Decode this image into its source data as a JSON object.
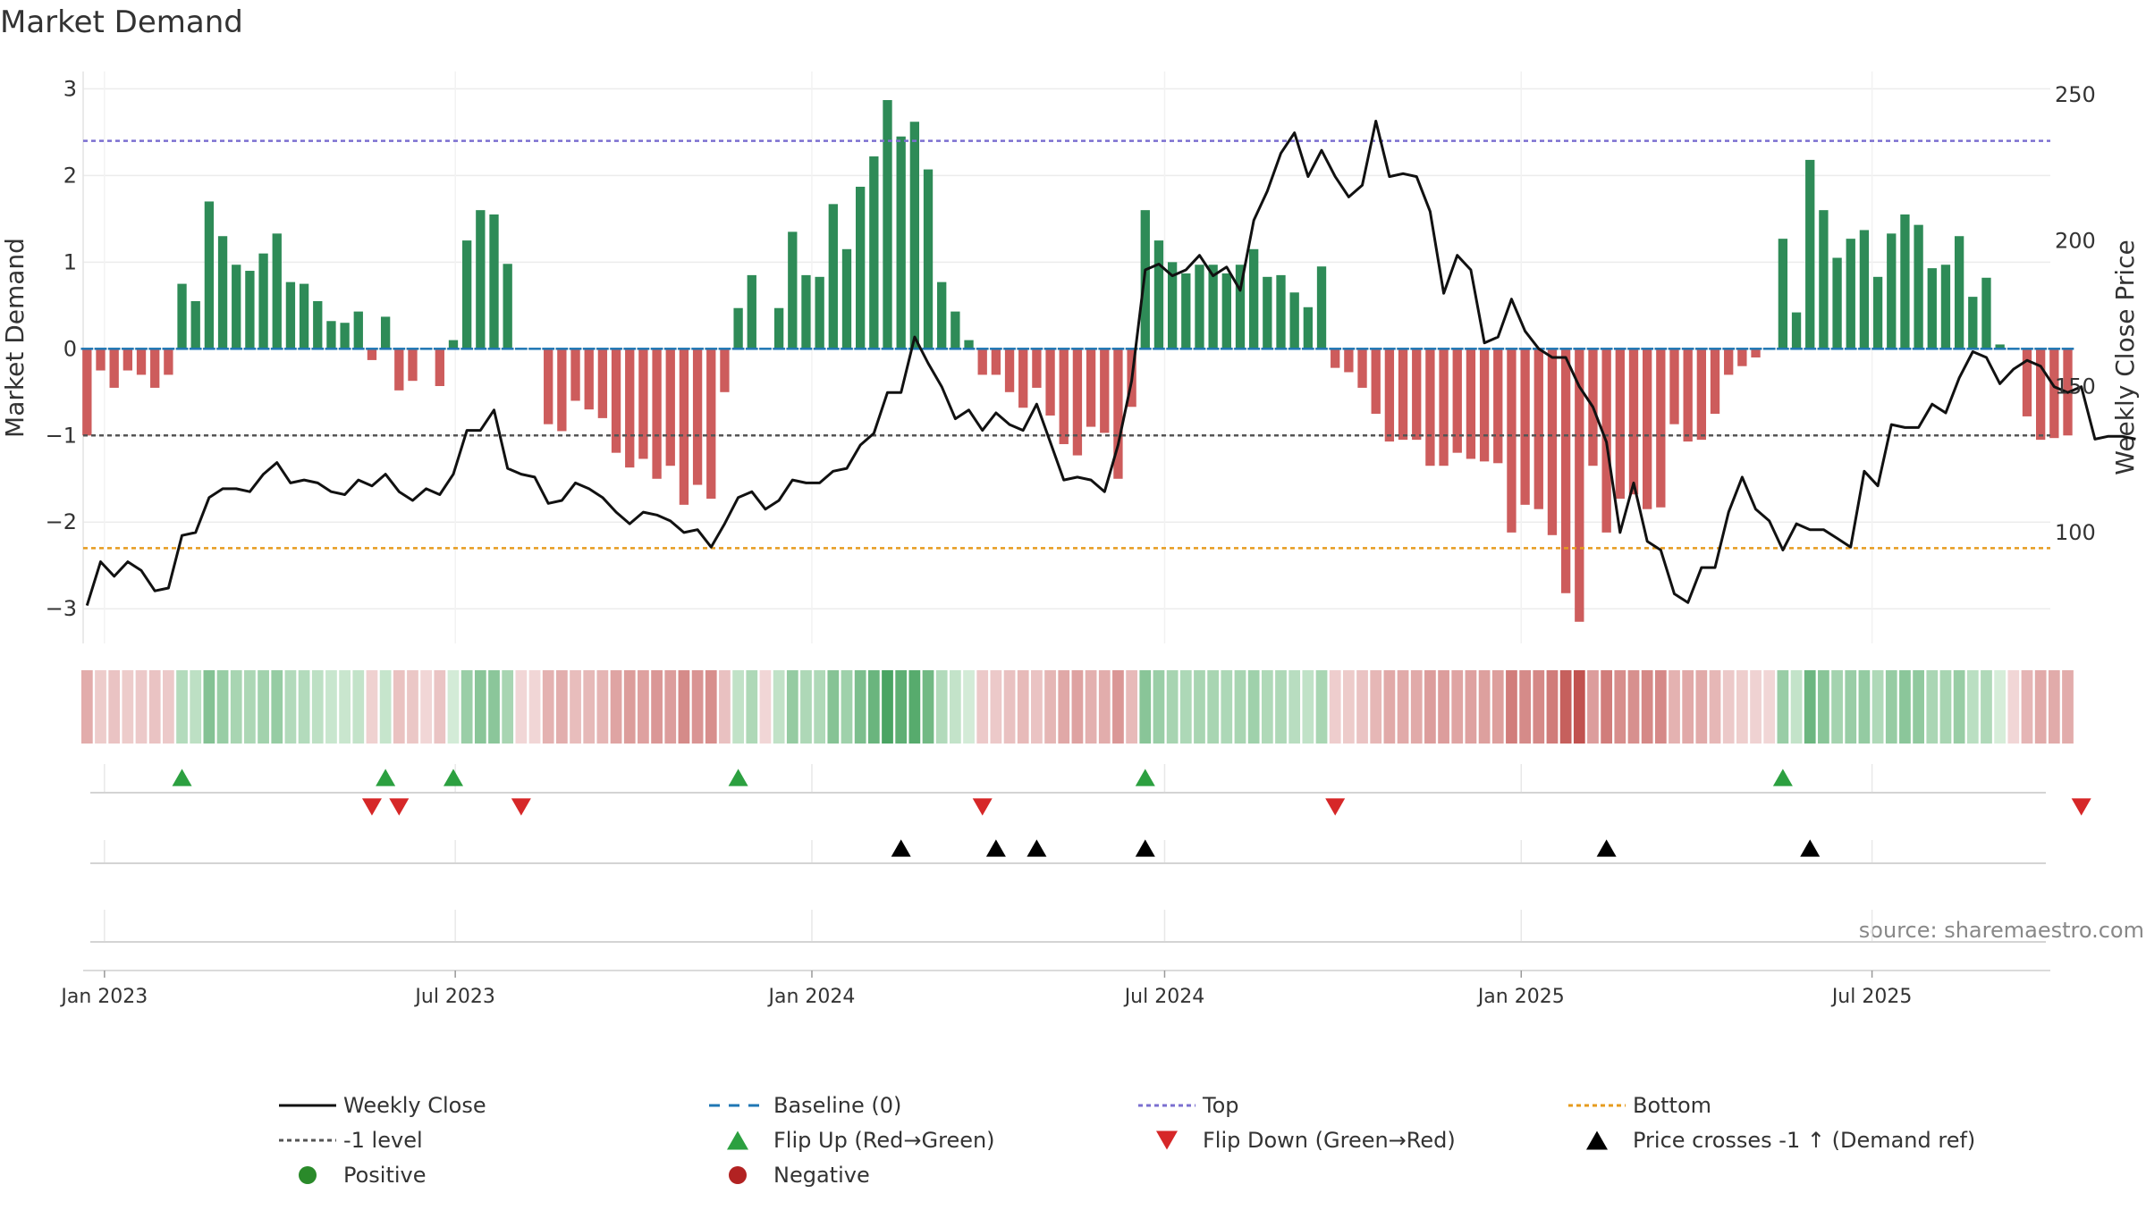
{
  "chart_data": {
    "type": "bar",
    "title": "Market Demand",
    "ylabel": "Market Demand",
    "y2label": "Weekly Close Price",
    "ylim": [
      -3.4,
      3.2
    ],
    "y2lim": [
      62,
      258
    ],
    "yticks": [
      -3,
      -2,
      -1,
      0,
      1,
      2,
      3
    ],
    "y2ticks": [
      100,
      150,
      200,
      250
    ],
    "x_start": "2022-12-21",
    "x_end": "2025-10-01",
    "x_ticks": [
      {
        "date": "2023-01-01",
        "label": "Jan 2023"
      },
      {
        "date": "2023-07-01",
        "label": "Jul 2023"
      },
      {
        "date": "2024-01-01",
        "label": "Jan 2024"
      },
      {
        "date": "2024-07-01",
        "label": "Jul 2024"
      },
      {
        "date": "2025-01-01",
        "label": "Jan 2025"
      },
      {
        "date": "2025-07-01",
        "label": "Jul 2025"
      }
    ],
    "reference_lines": {
      "top": 2.4,
      "bottom": -2.3,
      "level": -1,
      "baseline": 0
    },
    "first_week": "2022-12-23",
    "week_step_days": 7,
    "weekly_demand": [
      -1.0,
      -0.25,
      -0.45,
      -0.25,
      -0.3,
      -0.45,
      -0.3,
      0.75,
      0.55,
      1.7,
      1.3,
      0.97,
      0.9,
      1.1,
      1.33,
      0.77,
      0.75,
      0.55,
      0.32,
      0.3,
      0.43,
      -0.13,
      0.37,
      -0.48,
      -0.37,
      0.0,
      -0.43,
      0.1,
      1.25,
      1.6,
      1.55,
      0.98,
      0.0,
      0.0,
      -0.87,
      -0.95,
      -0.6,
      -0.7,
      -0.8,
      -1.2,
      -1.37,
      -1.27,
      -1.5,
      -1.35,
      -1.8,
      -1.57,
      -1.73,
      -0.5,
      0.47,
      0.85,
      0.0,
      0.47,
      1.35,
      0.85,
      0.83,
      1.67,
      1.15,
      1.87,
      2.22,
      2.87,
      2.45,
      2.62,
      2.07,
      0.77,
      0.43,
      0.1,
      -0.3,
      -0.3,
      -0.5,
      -0.68,
      -0.45,
      -0.77,
      -1.1,
      -1.23,
      -0.9,
      -0.97,
      -1.5,
      -0.67,
      1.6,
      1.25,
      1.0,
      0.87,
      0.97,
      0.97,
      0.87,
      0.97,
      1.15,
      0.83,
      0.85,
      0.65,
      0.48,
      0.95,
      -0.22,
      -0.27,
      -0.45,
      -0.75,
      -1.07,
      -1.05,
      -1.05,
      -1.35,
      -1.35,
      -1.2,
      -1.27,
      -1.3,
      -1.32,
      -2.12,
      -1.8,
      -1.85,
      -2.15,
      -2.82,
      -3.15,
      -1.35,
      -2.12,
      -1.73,
      -1.68,
      -1.85,
      -1.83,
      -0.87,
      -1.07,
      -1.05,
      -0.75,
      -0.3,
      -0.2,
      -0.1,
      0.0,
      1.27,
      0.42,
      2.18,
      1.6,
      1.05,
      1.27,
      1.37,
      0.83,
      1.33,
      1.55,
      1.43,
      0.93,
      0.97,
      1.3,
      0.6,
      0.82,
      0.05,
      0.0,
      -0.78,
      -1.05,
      -1.03,
      -1.0
    ],
    "weekly_close": [
      75,
      90,
      85,
      90,
      87,
      80,
      81,
      99,
      100,
      112,
      115,
      115,
      114,
      120,
      124,
      117,
      118,
      117,
      114,
      113,
      118,
      116,
      120,
      114,
      111,
      115,
      113,
      120,
      135,
      135,
      142,
      122,
      120,
      119,
      110,
      111,
      117,
      115,
      112,
      107,
      103,
      107,
      106,
      104,
      100,
      101,
      95,
      103,
      112,
      114,
      108,
      111,
      118,
      117,
      117,
      121,
      122,
      130,
      134,
      148,
      148,
      167,
      158,
      150,
      139,
      142,
      135,
      141,
      137,
      135,
      144,
      131,
      118,
      119,
      118,
      114,
      130,
      152,
      190,
      192,
      188,
      190,
      195,
      188,
      191,
      183,
      207,
      217,
      230,
      237,
      222,
      231,
      222,
      215,
      219,
      241,
      222,
      223,
      222,
      210,
      182,
      195,
      190,
      165,
      167,
      180,
      169,
      163,
      160,
      160,
      150,
      143,
      131,
      100,
      117,
      97,
      94,
      79,
      76,
      88,
      88,
      107,
      119,
      108,
      104,
      94,
      103,
      101,
      101,
      98,
      95,
      121,
      116,
      137,
      136,
      136,
      144,
      141,
      153,
      162,
      160,
      151,
      156,
      159,
      157,
      150,
      148,
      150,
      132,
      133,
      133,
      132
    ],
    "signal_rows": [
      {
        "name": "Flip Up (Red→Green)",
        "marker": "triangle-up",
        "color": "#2ca040",
        "weeks": [
          7,
          22,
          27,
          48,
          78,
          125
        ]
      },
      {
        "name": "Flip Down (Green→Red)",
        "marker": "triangle-down",
        "color": "#d62728",
        "weeks": [
          21,
          23,
          32,
          66,
          92,
          147
        ]
      },
      {
        "name": "Price crosses -1 ↑ (Demand ref)",
        "marker": "triangle-up",
        "color": "#000000",
        "weeks": [
          60,
          67,
          70,
          78,
          112,
          127
        ]
      }
    ],
    "colors": {
      "positive_bar": "#2e8b57",
      "negative_bar": "#cd5c5c",
      "close_line": "#111111",
      "baseline": "#1f77b4",
      "top": "#7b6fd0",
      "bottom": "#e69b1e",
      "level": "#555555",
      "positive_dot": "#2a8a2a",
      "negative_dot": "#b22222"
    },
    "source_note": "source: sharemaestro.com",
    "legend": [
      {
        "label": "Weekly Close",
        "type": "line-solid",
        "color": "#111111"
      },
      {
        "label": "Baseline (0)",
        "type": "line-dashed",
        "color": "#1f77b4"
      },
      {
        "label": "Top",
        "type": "line-dotted",
        "color": "#7b6fd0"
      },
      {
        "label": "Bottom",
        "type": "line-dotted",
        "color": "#e69b1e"
      },
      {
        "label": "-1 level",
        "type": "line-dotted",
        "color": "#555555"
      },
      {
        "label": "Flip Up (Red→Green)",
        "type": "triangle-up",
        "color": "#2ca040"
      },
      {
        "label": "Flip Down (Green→Red)",
        "type": "triangle-down",
        "color": "#d62728"
      },
      {
        "label": "Price crosses -1 ↑ (Demand ref)",
        "type": "triangle-up",
        "color": "#000000"
      },
      {
        "label": "Positive",
        "type": "dot",
        "color": "#2a8a2a"
      },
      {
        "label": "Negative",
        "type": "dot",
        "color": "#b22222"
      }
    ]
  }
}
